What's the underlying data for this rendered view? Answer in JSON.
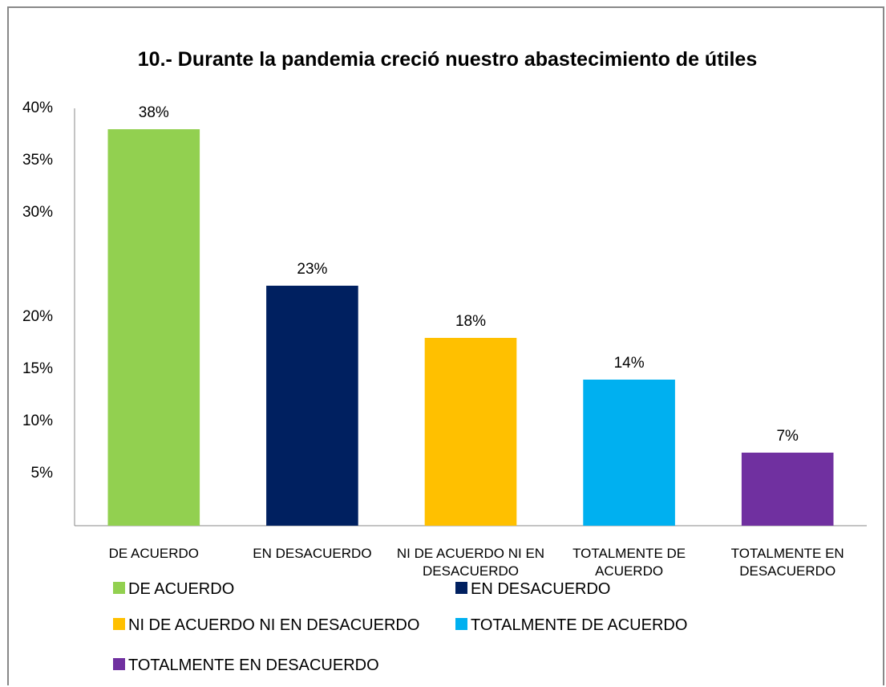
{
  "chart_data": {
    "type": "bar",
    "title": "10.- Durante la pandemia creció nuestro abastecimiento de útiles",
    "categories": [
      "DE ACUERDO",
      "EN DESACUERDO",
      "NI DE ACUERDO NI EN DESACUERDO",
      "TOTALMENTE DE ACUERDO",
      "TOTALMENTE EN DESACUERDO"
    ],
    "values": [
      38,
      23,
      18,
      14,
      7
    ],
    "value_labels": [
      "38%",
      "23%",
      "18%",
      "14%",
      "7%"
    ],
    "colors": [
      "#92d050",
      "#002060",
      "#ffc000",
      "#00b0f0",
      "#7030a0"
    ],
    "ylim": [
      0,
      40
    ],
    "yticks": [
      {
        "value": 5,
        "label": "5%"
      },
      {
        "value": 10,
        "label": "10%"
      },
      {
        "value": 15,
        "label": "15%"
      },
      {
        "value": 20,
        "label": "20%"
      },
      {
        "value": 30,
        "label": "30%"
      },
      {
        "value": 35,
        "label": "35%"
      },
      {
        "value": 40,
        "label": "40%"
      }
    ],
    "grid": false
  }
}
